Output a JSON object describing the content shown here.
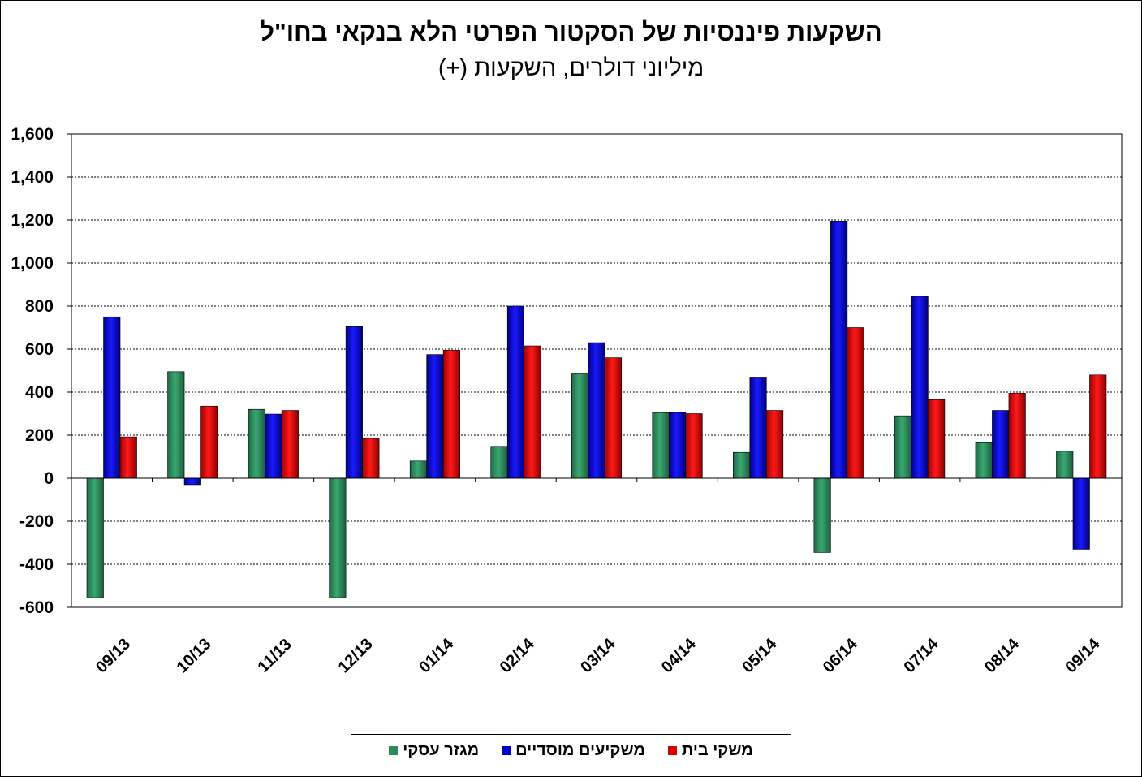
{
  "chart_data": {
    "type": "bar",
    "title": "השקעות פיננסיות של הסקטור הפרטי הלא בנקאי בחו\"ל",
    "subtitle": "מיליוני דולרים, השקעות (+)",
    "categories": [
      "09/13",
      "10/13",
      "11/13",
      "12/13",
      "01/14",
      "02/14",
      "03/14",
      "04/14",
      "05/14",
      "06/14",
      "07/14",
      "08/14",
      "09/14"
    ],
    "series": [
      {
        "name": "מגזר עסקי",
        "color": "#2e8b57",
        "values": [
          -555,
          495,
          320,
          -555,
          80,
          148,
          485,
          305,
          120,
          -345,
          290,
          165,
          125
        ]
      },
      {
        "name": "משקיעים מוסדיים",
        "color": "#0000cc",
        "values": [
          750,
          -30,
          298,
          705,
          575,
          800,
          630,
          305,
          470,
          1195,
          845,
          315,
          -330
        ]
      },
      {
        "name": "משקי בית",
        "color": "#dd0000",
        "values": [
          192,
          335,
          315,
          185,
          595,
          615,
          560,
          300,
          315,
          700,
          365,
          395,
          480
        ]
      }
    ],
    "ylim": [
      -600,
      1600
    ],
    "yticks": [
      "-600",
      "-400",
      "-200",
      "0",
      "200",
      "400",
      "600",
      "800",
      "1,000",
      "1,200",
      "1,400",
      "1,600"
    ],
    "grid": true,
    "legend_position": "bottom"
  }
}
